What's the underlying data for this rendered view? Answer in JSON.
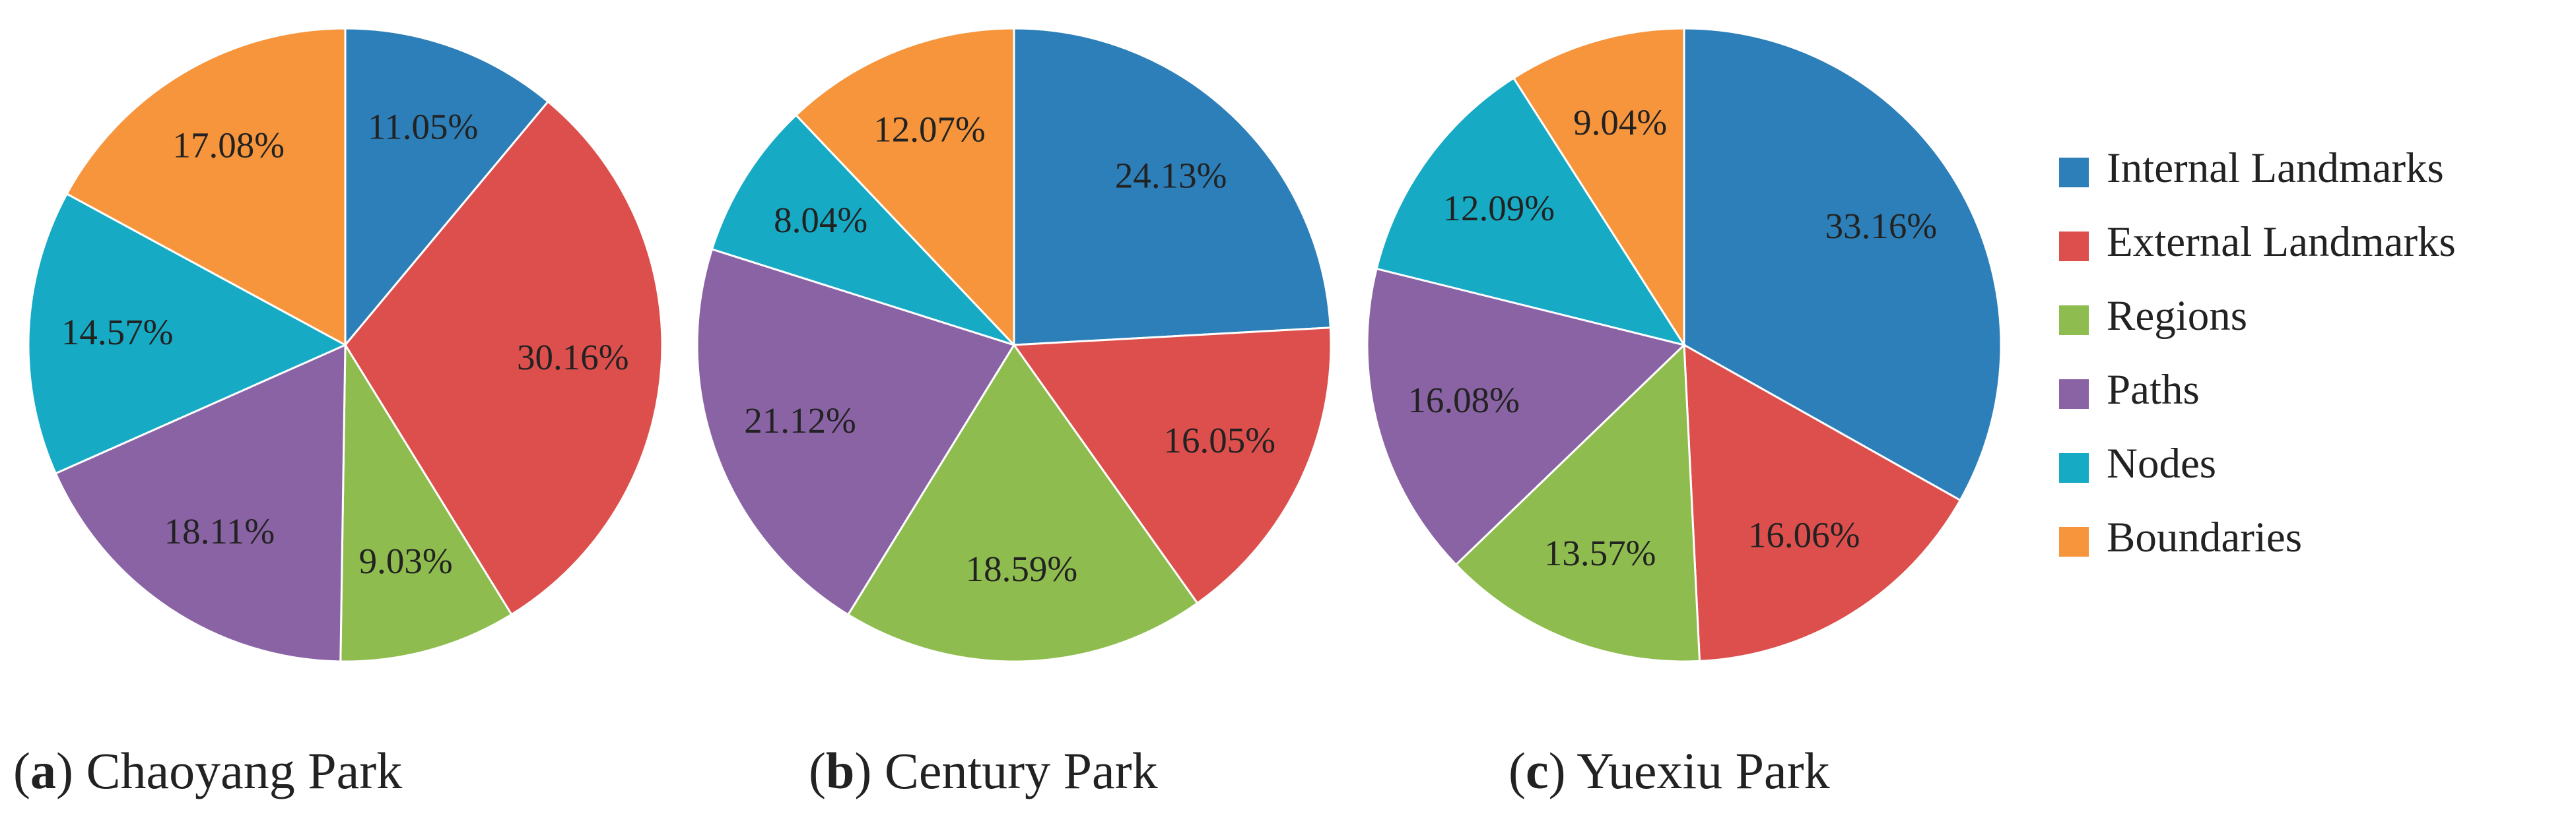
{
  "chart_data": [
    {
      "type": "pie",
      "caption": [
        "(",
        "a",
        ") Chaoyang Park"
      ],
      "categories": [
        "Internal Landmarks",
        "External Landmarks",
        "Regions",
        "Paths",
        "Nodes",
        "Boundaries"
      ],
      "colors": [
        "#2c7fb8",
        "#dc4f4c",
        "#8fbc4e",
        "#8a63a5",
        "#17aac4",
        "#f7953c"
      ],
      "values": [
        11.05,
        30.16,
        9.03,
        18.11,
        14.57,
        17.08
      ],
      "value_labels": [
        "11.05%",
        "30.16%",
        "9.03%",
        "18.11%",
        "14.57%",
        "17.08%"
      ]
    },
    {
      "type": "pie",
      "caption": [
        "(",
        "b",
        ") Century Park"
      ],
      "categories": [
        "Internal Landmarks",
        "External Landmarks",
        "Regions",
        "Paths",
        "Nodes",
        "Boundaries"
      ],
      "colors": [
        "#2c7fb8",
        "#dc4f4c",
        "#8fbc4e",
        "#8a63a5",
        "#17aac4",
        "#f7953c"
      ],
      "values": [
        24.13,
        16.05,
        18.59,
        21.12,
        8.04,
        12.07
      ],
      "value_labels": [
        "24.13%",
        "16.05%",
        "18.59%",
        "21.12%",
        "8.04%",
        "12.07%"
      ]
    },
    {
      "type": "pie",
      "caption": [
        "(",
        "c",
        ") Yuexiu Park"
      ],
      "categories": [
        "Internal Landmarks",
        "External Landmarks",
        "Regions",
        "Paths",
        "Nodes",
        "Boundaries"
      ],
      "colors": [
        "#2c7fb8",
        "#dc4f4c",
        "#8fbc4e",
        "#8a63a5",
        "#17aac4",
        "#f7953c"
      ],
      "values": [
        33.16,
        16.06,
        13.57,
        16.08,
        12.09,
        9.04
      ],
      "value_labels": [
        "33.16%",
        "16.06%",
        "13.57%",
        "16.08%",
        "12.09%",
        "9.04%"
      ]
    }
  ]
}
